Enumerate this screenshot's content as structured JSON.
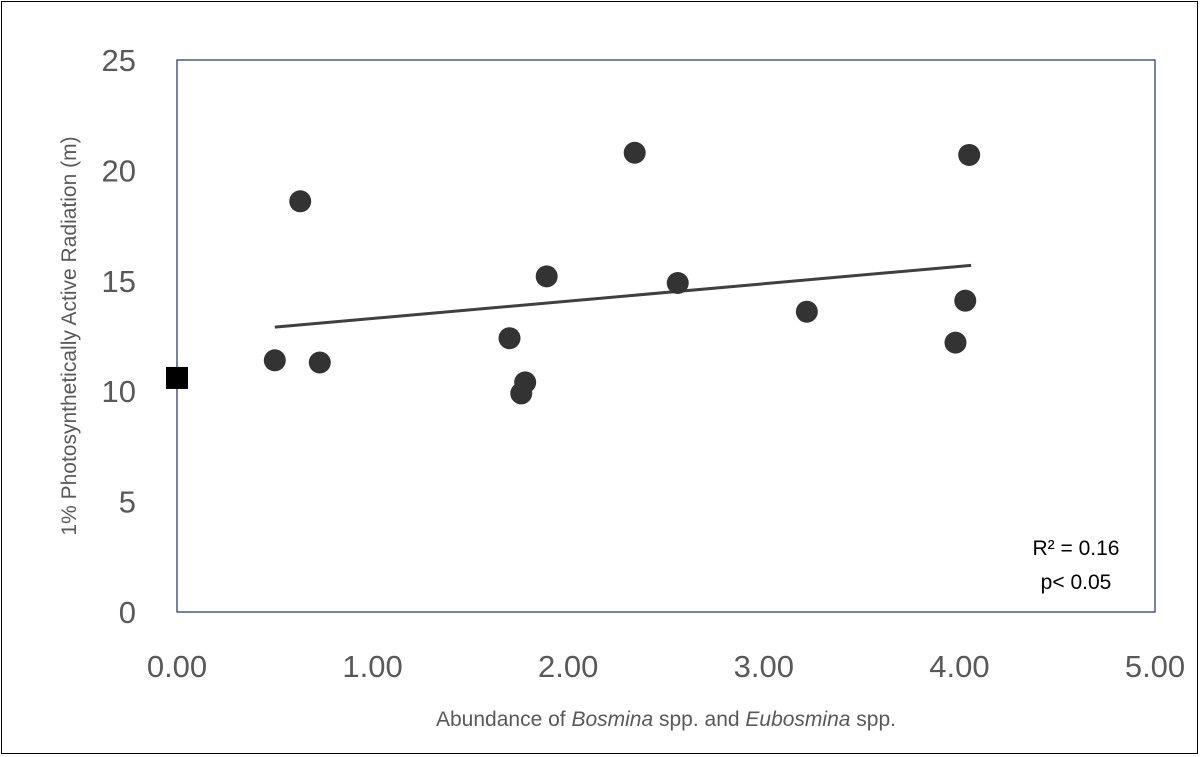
{
  "chart_data": {
    "type": "scatter",
    "xlabel_parts": [
      {
        "text": "Abundance of ",
        "italic": false
      },
      {
        "text": "Bosmina",
        "italic": true
      },
      {
        "text": " spp. and ",
        "italic": false
      },
      {
        "text": "Eubosmina",
        "italic": true
      },
      {
        "text": " spp.",
        "italic": false
      }
    ],
    "ylabel": "1% Photosynthetically Active Radiation (m)",
    "xlim": [
      0,
      5
    ],
    "ylim": [
      0,
      25
    ],
    "x_ticks": [
      "0.00",
      "1.00",
      "2.00",
      "3.00",
      "4.00",
      "5.00"
    ],
    "y_ticks": [
      "0",
      "5",
      "10",
      "15",
      "20",
      "25"
    ],
    "series": [
      {
        "marker": "circle",
        "color": "#333333",
        "points": [
          {
            "x": 0.5,
            "y": 11.4
          },
          {
            "x": 0.63,
            "y": 18.6
          },
          {
            "x": 0.73,
            "y": 11.3
          },
          {
            "x": 1.7,
            "y": 12.4
          },
          {
            "x": 1.76,
            "y": 9.9
          },
          {
            "x": 1.78,
            "y": 10.4
          },
          {
            "x": 1.89,
            "y": 15.2
          },
          {
            "x": 2.34,
            "y": 20.8
          },
          {
            "x": 2.56,
            "y": 14.9
          },
          {
            "x": 3.22,
            "y": 13.6
          },
          {
            "x": 3.98,
            "y": 12.2
          },
          {
            "x": 4.03,
            "y": 14.1
          },
          {
            "x": 4.05,
            "y": 20.7
          }
        ]
      },
      {
        "marker": "square",
        "color": "#000000",
        "points": [
          {
            "x": 0.0,
            "y": 10.6
          }
        ]
      }
    ],
    "trendline": {
      "x": [
        0.5,
        4.06
      ],
      "y": [
        12.9,
        15.7
      ],
      "color": "#404040"
    },
    "annotations": [
      "R² = 0.16",
      "p< 0.05"
    ],
    "grid": false,
    "plot_border_color": "#1f2d6e"
  }
}
